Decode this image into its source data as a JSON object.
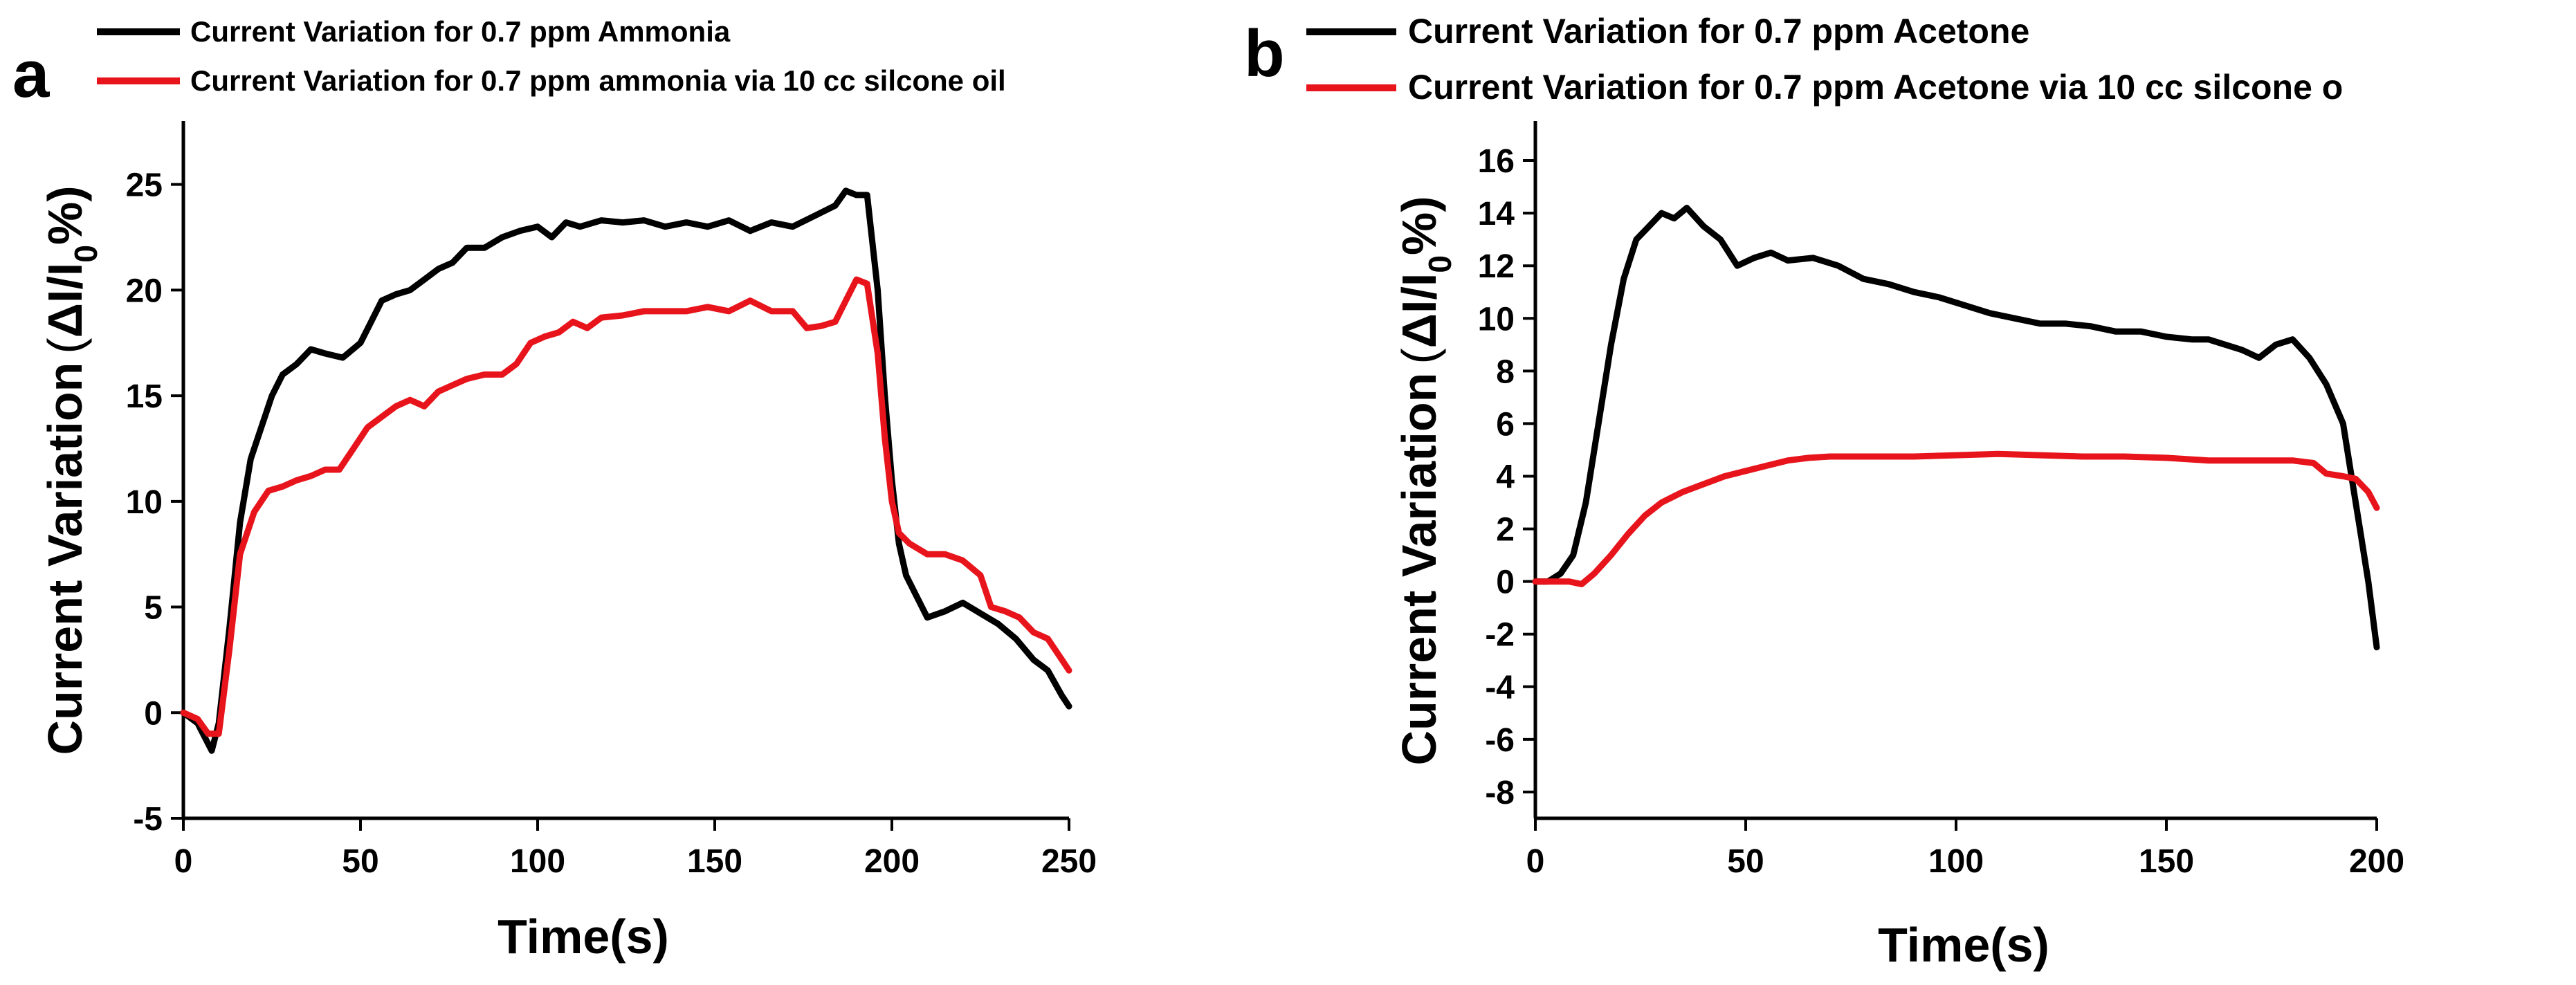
{
  "figure": {
    "panels": [
      "a",
      "b"
    ]
  },
  "chart_data": [
    {
      "type": "line",
      "panel": "a",
      "title": "",
      "xlabel": "Time(s)",
      "ylabel_main": "Current Variation",
      "ylabel_paren_open": "(",
      "ylabel_delta": "ΔI/I",
      "ylabel_sub": "0",
      "ylabel_pct": "%)",
      "xlim": [
        0,
        250
      ],
      "ylim": [
        -5,
        28
      ],
      "xticks": [
        0,
        50,
        100,
        150,
        200,
        250
      ],
      "yticks": [
        -5,
        0,
        5,
        10,
        15,
        20,
        25
      ],
      "grid": false,
      "legend_position": "top",
      "series": [
        {
          "name": "Current Variation for 0.7 ppm Ammonia",
          "color": "#000000",
          "points": [
            [
              0,
              0
            ],
            [
              4,
              -0.5
            ],
            [
              8,
              -1.8
            ],
            [
              10,
              -0.5
            ],
            [
              13,
              4
            ],
            [
              16,
              9
            ],
            [
              19,
              12
            ],
            [
              22,
              13.5
            ],
            [
              25,
              15
            ],
            [
              28,
              16
            ],
            [
              32,
              16.5
            ],
            [
              36,
              17.2
            ],
            [
              40,
              17
            ],
            [
              45,
              16.8
            ],
            [
              50,
              17.5
            ],
            [
              53,
              18.5
            ],
            [
              56,
              19.5
            ],
            [
              60,
              19.8
            ],
            [
              64,
              20
            ],
            [
              68,
              20.5
            ],
            [
              72,
              21
            ],
            [
              76,
              21.3
            ],
            [
              80,
              22
            ],
            [
              85,
              22
            ],
            [
              90,
              22.5
            ],
            [
              95,
              22.8
            ],
            [
              100,
              23
            ],
            [
              104,
              22.5
            ],
            [
              108,
              23.2
            ],
            [
              112,
              23
            ],
            [
              118,
              23.3
            ],
            [
              124,
              23.2
            ],
            [
              130,
              23.3
            ],
            [
              136,
              23
            ],
            [
              142,
              23.2
            ],
            [
              148,
              23
            ],
            [
              154,
              23.3
            ],
            [
              160,
              22.8
            ],
            [
              166,
              23.2
            ],
            [
              172,
              23
            ],
            [
              178,
              23.5
            ],
            [
              184,
              24
            ],
            [
              187,
              24.7
            ],
            [
              190,
              24.5
            ],
            [
              193,
              24.5
            ],
            [
              196,
              20
            ],
            [
              198,
              15
            ],
            [
              200,
              11
            ],
            [
              202,
              8
            ],
            [
              204,
              6.5
            ],
            [
              207,
              5.5
            ],
            [
              210,
              4.5
            ],
            [
              215,
              4.8
            ],
            [
              220,
              5.2
            ],
            [
              225,
              4.7
            ],
            [
              230,
              4.2
            ],
            [
              235,
              3.5
            ],
            [
              240,
              2.5
            ],
            [
              244,
              2
            ],
            [
              248,
              0.8
            ],
            [
              250,
              0.3
            ]
          ]
        },
        {
          "name": "Current Variation for 0.7 ppm ammonia  via 10 cc silcone oil",
          "color": "#e8141c",
          "points": [
            [
              0,
              0
            ],
            [
              4,
              -0.3
            ],
            [
              7,
              -1
            ],
            [
              10,
              -1
            ],
            [
              13,
              3
            ],
            [
              16,
              7.5
            ],
            [
              20,
              9.5
            ],
            [
              24,
              10.5
            ],
            [
              28,
              10.7
            ],
            [
              32,
              11
            ],
            [
              36,
              11.2
            ],
            [
              40,
              11.5
            ],
            [
              44,
              11.5
            ],
            [
              48,
              12.5
            ],
            [
              52,
              13.5
            ],
            [
              56,
              14
            ],
            [
              60,
              14.5
            ],
            [
              64,
              14.8
            ],
            [
              68,
              14.5
            ],
            [
              72,
              15.2
            ],
            [
              76,
              15.5
            ],
            [
              80,
              15.8
            ],
            [
              85,
              16
            ],
            [
              90,
              16
            ],
            [
              94,
              16.5
            ],
            [
              98,
              17.5
            ],
            [
              102,
              17.8
            ],
            [
              106,
              18
            ],
            [
              110,
              18.5
            ],
            [
              114,
              18.2
            ],
            [
              118,
              18.7
            ],
            [
              124,
              18.8
            ],
            [
              130,
              19
            ],
            [
              136,
              19
            ],
            [
              142,
              19
            ],
            [
              148,
              19.2
            ],
            [
              154,
              19
            ],
            [
              160,
              19.5
            ],
            [
              166,
              19
            ],
            [
              172,
              19
            ],
            [
              176,
              18.2
            ],
            [
              180,
              18.3
            ],
            [
              184,
              18.5
            ],
            [
              187,
              19.5
            ],
            [
              190,
              20.5
            ],
            [
              193,
              20.3
            ],
            [
              196,
              17
            ],
            [
              198,
              13
            ],
            [
              200,
              10
            ],
            [
              202,
              8.5
            ],
            [
              205,
              8
            ],
            [
              210,
              7.5
            ],
            [
              215,
              7.5
            ],
            [
              220,
              7.2
            ],
            [
              225,
              6.5
            ],
            [
              228,
              5
            ],
            [
              232,
              4.8
            ],
            [
              236,
              4.5
            ],
            [
              240,
              3.8
            ],
            [
              244,
              3.5
            ],
            [
              248,
              2.5
            ],
            [
              250,
              2
            ]
          ]
        }
      ]
    },
    {
      "type": "line",
      "panel": "b",
      "title": "",
      "xlabel": "Time(s)",
      "ylabel_main": "Current Variation",
      "ylabel_paren_open": "(",
      "ylabel_delta": "ΔI/I",
      "ylabel_sub": "0",
      "ylabel_pct": "%)",
      "xlim": [
        0,
        200
      ],
      "ylim": [
        -9,
        17.5
      ],
      "xticks": [
        0,
        50,
        100,
        150,
        200
      ],
      "yticks": [
        -8,
        -6,
        -4,
        -2,
        0,
        2,
        4,
        6,
        8,
        10,
        12,
        14,
        16
      ],
      "grid": false,
      "legend_position": "top",
      "series": [
        {
          "name": "Current Variation  for 0.7 ppm Acetone",
          "color": "#000000",
          "points": [
            [
              0,
              0
            ],
            [
              3,
              0
            ],
            [
              6,
              0.3
            ],
            [
              9,
              1
            ],
            [
              12,
              3
            ],
            [
              15,
              6
            ],
            [
              18,
              9
            ],
            [
              21,
              11.5
            ],
            [
              24,
              13
            ],
            [
              27,
              13.5
            ],
            [
              30,
              14
            ],
            [
              33,
              13.8
            ],
            [
              36,
              14.2
            ],
            [
              40,
              13.5
            ],
            [
              44,
              13
            ],
            [
              48,
              12
            ],
            [
              52,
              12.3
            ],
            [
              56,
              12.5
            ],
            [
              60,
              12.2
            ],
            [
              66,
              12.3
            ],
            [
              72,
              12
            ],
            [
              78,
              11.5
            ],
            [
              84,
              11.3
            ],
            [
              90,
              11
            ],
            [
              96,
              10.8
            ],
            [
              102,
              10.5
            ],
            [
              108,
              10.2
            ],
            [
              114,
              10
            ],
            [
              120,
              9.8
            ],
            [
              126,
              9.8
            ],
            [
              132,
              9.7
            ],
            [
              138,
              9.5
            ],
            [
              144,
              9.5
            ],
            [
              150,
              9.3
            ],
            [
              156,
              9.2
            ],
            [
              160,
              9.2
            ],
            [
              164,
              9
            ],
            [
              168,
              8.8
            ],
            [
              172,
              8.5
            ],
            [
              176,
              9
            ],
            [
              180,
              9.2
            ],
            [
              184,
              8.5
            ],
            [
              188,
              7.5
            ],
            [
              192,
              6
            ],
            [
              194,
              4
            ],
            [
              196,
              2
            ],
            [
              198,
              0
            ],
            [
              200,
              -2.5
            ]
          ]
        },
        {
          "name": "Current Variation  for 0.7 ppm Acetone via 10 cc silcone o",
          "color": "#e8141c",
          "points": [
            [
              0,
              0
            ],
            [
              5,
              0
            ],
            [
              8,
              0
            ],
            [
              11,
              -0.1
            ],
            [
              14,
              0.3
            ],
            [
              18,
              1
            ],
            [
              22,
              1.8
            ],
            [
              26,
              2.5
            ],
            [
              30,
              3
            ],
            [
              35,
              3.4
            ],
            [
              40,
              3.7
            ],
            [
              45,
              4
            ],
            [
              50,
              4.2
            ],
            [
              55,
              4.4
            ],
            [
              60,
              4.6
            ],
            [
              65,
              4.7
            ],
            [
              70,
              4.75
            ],
            [
              80,
              4.75
            ],
            [
              90,
              4.75
            ],
            [
              100,
              4.8
            ],
            [
              110,
              4.85
            ],
            [
              120,
              4.8
            ],
            [
              130,
              4.75
            ],
            [
              140,
              4.75
            ],
            [
              150,
              4.7
            ],
            [
              160,
              4.6
            ],
            [
              170,
              4.6
            ],
            [
              180,
              4.6
            ],
            [
              185,
              4.5
            ],
            [
              188,
              4.1
            ],
            [
              192,
              4
            ],
            [
              195,
              3.9
            ],
            [
              198,
              3.4
            ],
            [
              200,
              2.8
            ]
          ]
        }
      ]
    }
  ]
}
